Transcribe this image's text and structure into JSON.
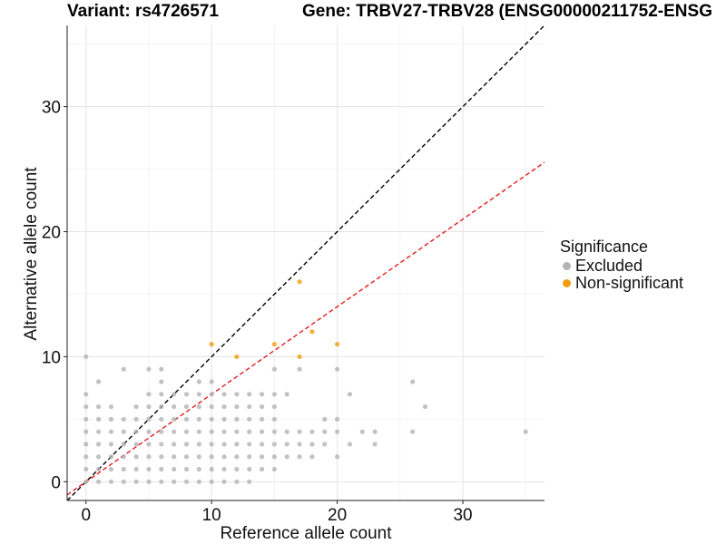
{
  "header": {
    "variant_title": "Variant: rs4726571",
    "gene_title": "Gene: TRBV27-TRBV28 (ENSG00000211752-ENSG"
  },
  "chart_data": {
    "type": "scatter",
    "xlabel": "Reference allele count",
    "ylabel": "Alternative allele count",
    "xlim": [
      -1.5,
      36.5
    ],
    "ylim": [
      -1.5,
      36.5
    ],
    "x_ticks": [
      0,
      10,
      20,
      30
    ],
    "y_ticks": [
      0,
      10,
      20,
      30
    ],
    "grid": true,
    "reference_lines": [
      {
        "name": "diagonal",
        "slope": 1.0,
        "intercept": 0,
        "color": "#000000",
        "dash": true
      },
      {
        "name": "expected-ratio",
        "slope": 0.7,
        "intercept": 0,
        "color": "#e41a1c",
        "dash": true
      }
    ],
    "legend": {
      "title": "Significance",
      "placement": "right",
      "entries": [
        {
          "label": "Excluded",
          "color": "#b3b3b3"
        },
        {
          "label": "Non-significant",
          "color": "#f39c12"
        }
      ]
    },
    "series": [
      {
        "name": "Excluded",
        "color": "#b3b3b3",
        "points": [
          [
            0,
            0
          ],
          [
            0,
            1
          ],
          [
            0,
            2
          ],
          [
            0,
            3
          ],
          [
            0,
            4
          ],
          [
            0,
            5
          ],
          [
            0,
            6
          ],
          [
            0,
            7
          ],
          [
            0,
            10
          ],
          [
            1,
            0
          ],
          [
            1,
            1
          ],
          [
            1,
            2
          ],
          [
            1,
            3
          ],
          [
            1,
            4
          ],
          [
            1,
            5
          ],
          [
            1,
            6
          ],
          [
            1,
            8
          ],
          [
            2,
            0
          ],
          [
            2,
            1
          ],
          [
            2,
            2
          ],
          [
            2,
            3
          ],
          [
            2,
            4
          ],
          [
            2,
            5
          ],
          [
            2,
            6
          ],
          [
            3,
            0
          ],
          [
            3,
            1
          ],
          [
            3,
            2
          ],
          [
            3,
            3
          ],
          [
            3,
            4
          ],
          [
            3,
            5
          ],
          [
            3,
            9
          ],
          [
            4,
            0
          ],
          [
            4,
            1
          ],
          [
            4,
            2
          ],
          [
            4,
            3
          ],
          [
            4,
            4
          ],
          [
            4,
            5
          ],
          [
            4,
            6
          ],
          [
            5,
            0
          ],
          [
            5,
            1
          ],
          [
            5,
            2
          ],
          [
            5,
            3
          ],
          [
            5,
            4
          ],
          [
            5,
            5
          ],
          [
            5,
            6
          ],
          [
            5,
            7
          ],
          [
            5,
            9
          ],
          [
            6,
            0
          ],
          [
            6,
            1
          ],
          [
            6,
            2
          ],
          [
            6,
            3
          ],
          [
            6,
            4
          ],
          [
            6,
            5
          ],
          [
            6,
            6
          ],
          [
            6,
            7
          ],
          [
            6,
            8
          ],
          [
            6,
            9
          ],
          [
            7,
            0
          ],
          [
            7,
            1
          ],
          [
            7,
            2
          ],
          [
            7,
            3
          ],
          [
            7,
            4
          ],
          [
            7,
            5
          ],
          [
            7,
            6
          ],
          [
            7,
            7
          ],
          [
            8,
            0
          ],
          [
            8,
            1
          ],
          [
            8,
            2
          ],
          [
            8,
            3
          ],
          [
            8,
            4
          ],
          [
            8,
            5
          ],
          [
            8,
            6
          ],
          [
            8,
            7
          ],
          [
            9,
            0
          ],
          [
            9,
            1
          ],
          [
            9,
            2
          ],
          [
            9,
            3
          ],
          [
            9,
            4
          ],
          [
            9,
            5
          ],
          [
            9,
            6
          ],
          [
            9,
            7
          ],
          [
            9,
            8
          ],
          [
            10,
            0
          ],
          [
            10,
            1
          ],
          [
            10,
            2
          ],
          [
            10,
            3
          ],
          [
            10,
            4
          ],
          [
            10,
            5
          ],
          [
            10,
            6
          ],
          [
            10,
            7
          ],
          [
            10,
            8
          ],
          [
            11,
            0
          ],
          [
            11,
            1
          ],
          [
            11,
            2
          ],
          [
            11,
            3
          ],
          [
            11,
            4
          ],
          [
            11,
            5
          ],
          [
            11,
            6
          ],
          [
            11,
            7
          ],
          [
            12,
            0
          ],
          [
            12,
            1
          ],
          [
            12,
            2
          ],
          [
            12,
            3
          ],
          [
            12,
            4
          ],
          [
            12,
            5
          ],
          [
            12,
            6
          ],
          [
            12,
            7
          ],
          [
            13,
            0
          ],
          [
            13,
            1
          ],
          [
            13,
            2
          ],
          [
            13,
            3
          ],
          [
            13,
            4
          ],
          [
            13,
            5
          ],
          [
            13,
            6
          ],
          [
            13,
            7
          ],
          [
            14,
            1
          ],
          [
            14,
            2
          ],
          [
            14,
            3
          ],
          [
            14,
            4
          ],
          [
            14,
            5
          ],
          [
            14,
            6
          ],
          [
            14,
            7
          ],
          [
            15,
            1
          ],
          [
            15,
            2
          ],
          [
            15,
            3
          ],
          [
            15,
            4
          ],
          [
            15,
            5
          ],
          [
            15,
            6
          ],
          [
            15,
            7
          ],
          [
            15,
            9
          ],
          [
            16,
            2
          ],
          [
            16,
            3
          ],
          [
            16,
            4
          ],
          [
            16,
            7
          ],
          [
            17,
            2
          ],
          [
            17,
            3
          ],
          [
            17,
            4
          ],
          [
            17,
            9
          ],
          [
            18,
            2
          ],
          [
            18,
            3
          ],
          [
            18,
            4
          ],
          [
            19,
            3
          ],
          [
            19,
            4
          ],
          [
            19,
            5
          ],
          [
            20,
            2
          ],
          [
            20,
            4
          ],
          [
            20,
            5
          ],
          [
            20,
            9
          ],
          [
            21,
            3
          ],
          [
            21,
            7
          ],
          [
            22,
            4
          ],
          [
            23,
            3
          ],
          [
            23,
            4
          ],
          [
            26,
            4
          ],
          [
            26,
            8
          ],
          [
            27,
            6
          ],
          [
            35,
            4
          ]
        ]
      },
      {
        "name": "Non-significant",
        "color": "#f39c12",
        "points": [
          [
            10,
            11
          ],
          [
            12,
            10
          ],
          [
            15,
            11
          ],
          [
            17,
            16
          ],
          [
            17,
            10
          ],
          [
            18,
            12
          ],
          [
            20,
            11
          ]
        ]
      }
    ]
  }
}
